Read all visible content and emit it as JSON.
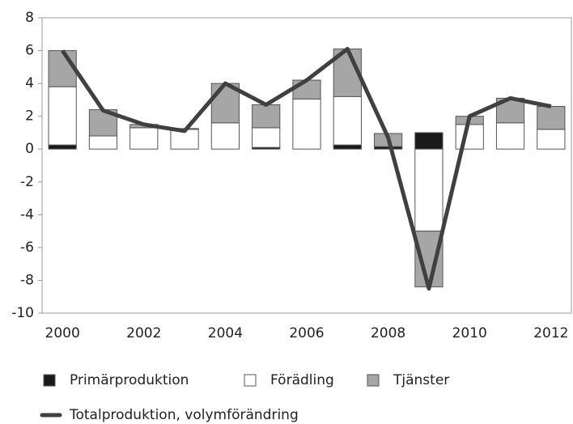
{
  "chart_data": {
    "type": "bar",
    "stacked": true,
    "categories": [
      "2000",
      null,
      "2002",
      null,
      "2004",
      null,
      "2006",
      null,
      "2008",
      null,
      "2010",
      null,
      "2012"
    ],
    "series": [
      {
        "name": "Primärproduktion",
        "color": "#1a1a1a",
        "values": [
          0.25,
          0,
          0,
          0,
          0,
          0.1,
          0,
          0.25,
          0.15,
          1.0,
          0,
          0,
          0
        ]
      },
      {
        "name": "Förädling",
        "color": "#ffffff",
        "values": [
          3.55,
          0.8,
          1.3,
          1.2,
          1.6,
          1.2,
          3.05,
          2.95,
          0,
          -5.0,
          1.5,
          1.6,
          1.2
        ]
      },
      {
        "name": "Tjänster",
        "color": "#a6a6a6",
        "values": [
          2.2,
          1.6,
          0.2,
          0.05,
          2.4,
          1.4,
          1.15,
          2.9,
          0.8,
          -3.4,
          0.5,
          1.5,
          1.4
        ]
      },
      {
        "name": "Totalproduktion, volymförändring",
        "color": "#404040",
        "type": "line",
        "values": [
          6.0,
          2.35,
          1.5,
          1.1,
          4.0,
          2.7,
          4.2,
          6.1,
          0.7,
          -8.5,
          2.0,
          3.1,
          2.6
        ]
      }
    ],
    "ylim": [
      -10,
      8
    ],
    "yticks": [
      -10,
      -8,
      -6,
      -4,
      -2,
      0,
      2,
      4,
      6,
      8
    ]
  }
}
